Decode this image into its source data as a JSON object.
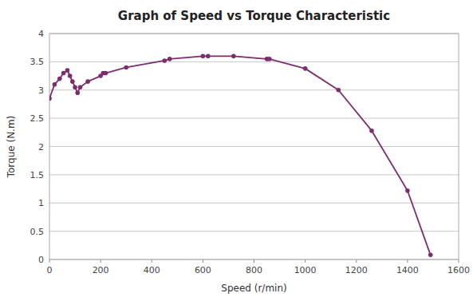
{
  "chart_data": {
    "type": "line",
    "title": "Graph of Speed vs Torque Characteristic",
    "xlabel": "Speed (r/min)",
    "ylabel": "Torque (N.m)",
    "x": [
      0,
      20,
      40,
      55,
      70,
      80,
      90,
      100,
      110,
      120,
      150,
      200,
      210,
      220,
      300,
      450,
      470,
      600,
      620,
      720,
      850,
      860,
      1000,
      1130,
      1260,
      1400,
      1490
    ],
    "values": [
      2.85,
      3.1,
      3.2,
      3.3,
      3.35,
      3.25,
      3.15,
      3.05,
      2.95,
      3.05,
      3.15,
      3.25,
      3.3,
      3.3,
      3.4,
      3.52,
      3.55,
      3.6,
      3.6,
      3.6,
      3.55,
      3.55,
      3.38,
      3.0,
      2.28,
      1.22,
      0.08
    ],
    "color": "#7B2D6E",
    "marker": "circle",
    "grid": "y",
    "xlim": [
      0,
      1600
    ],
    "ylim": [
      0,
      4
    ],
    "xticks": [
      0,
      200,
      400,
      600,
      800,
      1000,
      1200,
      1400,
      1600
    ],
    "yticks": [
      0,
      0.5,
      1,
      1.5,
      2,
      2.5,
      3,
      3.5,
      4
    ]
  }
}
